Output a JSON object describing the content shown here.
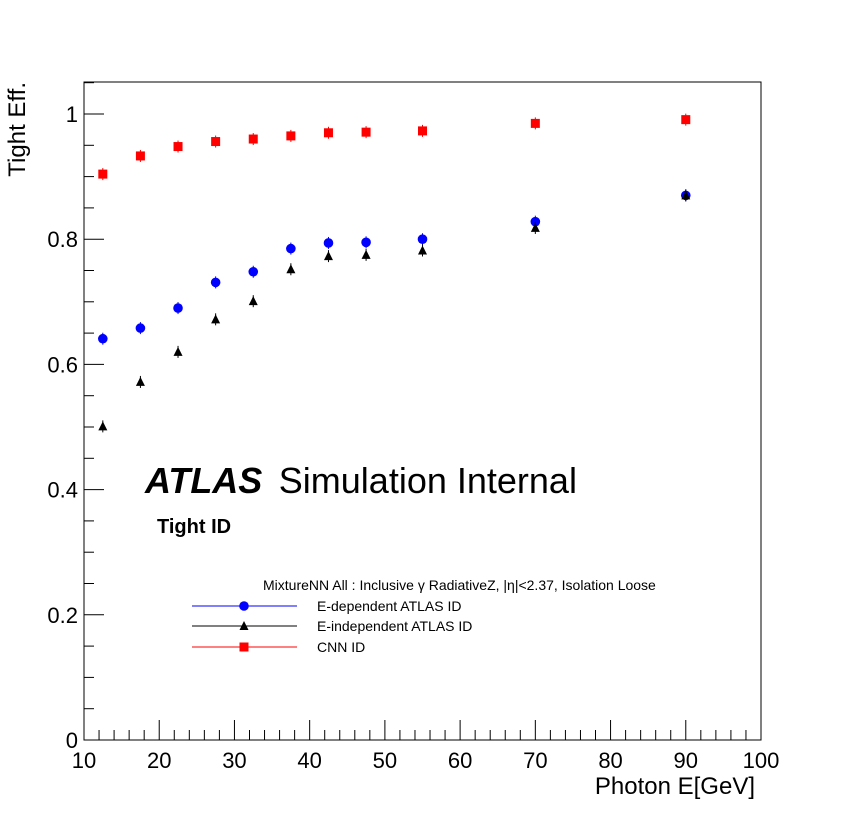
{
  "chart_data": {
    "type": "scatter",
    "xlabel": "Photon E[GeV]",
    "ylabel": "Tight Eff.",
    "xlim": [
      10,
      100
    ],
    "ylim": [
      0,
      1.05
    ],
    "x_ticks": [
      "10",
      "20",
      "30",
      "40",
      "50",
      "60",
      "70",
      "80",
      "90",
      "100"
    ],
    "y_ticks": [
      "0",
      "0.2",
      "0.4",
      "0.6",
      "0.8",
      "1"
    ],
    "grid": false,
    "legend_placement": "lower-left",
    "atlas_label": {
      "bold": "ATLAS",
      "rest": "Simulation Internal"
    },
    "sub_label": "Tight ID",
    "legend_header": "MixtureNN All : Inclusive γ RadiativeZ, |η|<2.37, Isolation Loose",
    "series": [
      {
        "name": "E-dependent ATLAS ID",
        "color": "#0000ff",
        "marker": "circle",
        "x": [
          12.5,
          17.5,
          22.5,
          27.5,
          32.5,
          37.5,
          42.5,
          47.5,
          55,
          70,
          90
        ],
        "y": [
          0.641,
          0.658,
          0.69,
          0.731,
          0.748,
          0.785,
          0.794,
          0.795,
          0.8,
          0.828,
          0.87
        ]
      },
      {
        "name": "E-independent ATLAS ID",
        "color": "#000000",
        "marker": "triangle",
        "x": [
          12.5,
          17.5,
          22.5,
          27.5,
          32.5,
          37.5,
          42.5,
          47.5,
          55,
          70,
          90
        ],
        "y": [
          0.501,
          0.572,
          0.62,
          0.672,
          0.701,
          0.752,
          0.773,
          0.775,
          0.782,
          0.818,
          0.87
        ]
      },
      {
        "name": "CNN ID",
        "color": "#ff0000",
        "marker": "square",
        "x": [
          12.5,
          17.5,
          22.5,
          27.5,
          32.5,
          37.5,
          42.5,
          47.5,
          55,
          70,
          90
        ],
        "y": [
          0.904,
          0.933,
          0.948,
          0.956,
          0.96,
          0.965,
          0.97,
          0.971,
          0.973,
          0.985,
          0.991
        ]
      }
    ]
  }
}
